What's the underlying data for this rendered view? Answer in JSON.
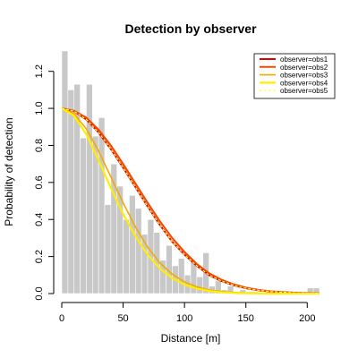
{
  "chart_data": {
    "type": "bar",
    "title": "Detection by observer",
    "xlabel": "Distance [m]",
    "ylabel": "Probability of detection",
    "xlim": [
      0,
      210
    ],
    "ylim": [
      0,
      1.3
    ],
    "xticks": [
      0,
      50,
      100,
      150,
      200
    ],
    "yticks": [
      0.0,
      0.2,
      0.4,
      0.6,
      0.8,
      1.0,
      1.2
    ],
    "ytick_labels": [
      "0.0",
      "0.2",
      "0.4",
      "0.6",
      "0.8",
      "1.0",
      "1.2"
    ],
    "grid": false,
    "legend_position": "top-right",
    "histogram": {
      "color": "#c8c8c8",
      "bin_width": 5,
      "bins": [
        {
          "x0": 0,
          "height": 1.31
        },
        {
          "x0": 5,
          "height": 1.1
        },
        {
          "x0": 10,
          "height": 1.13
        },
        {
          "x0": 15,
          "height": 0.84
        },
        {
          "x0": 20,
          "height": 1.13
        },
        {
          "x0": 25,
          "height": 0.85
        },
        {
          "x0": 30,
          "height": 0.95
        },
        {
          "x0": 35,
          "height": 0.48
        },
        {
          "x0": 40,
          "height": 0.7
        },
        {
          "x0": 45,
          "height": 0.58
        },
        {
          "x0": 50,
          "height": 0.4
        },
        {
          "x0": 55,
          "height": 0.53
        },
        {
          "x0": 60,
          "height": 0.46
        },
        {
          "x0": 65,
          "height": 0.32
        },
        {
          "x0": 70,
          "height": 0.4
        },
        {
          "x0": 75,
          "height": 0.33
        },
        {
          "x0": 80,
          "height": 0.18
        },
        {
          "x0": 85,
          "height": 0.26
        },
        {
          "x0": 90,
          "height": 0.15
        },
        {
          "x0": 95,
          "height": 0.19
        },
        {
          "x0": 100,
          "height": 0.1
        },
        {
          "x0": 105,
          "height": 0.17
        },
        {
          "x0": 110,
          "height": 0.09
        },
        {
          "x0": 115,
          "height": 0.22
        },
        {
          "x0": 120,
          "height": 0.04
        },
        {
          "x0": 125,
          "height": 0.07
        },
        {
          "x0": 130,
          "height": 0.02
        },
        {
          "x0": 135,
          "height": 0.04
        },
        {
          "x0": 140,
          "height": 0.01
        },
        {
          "x0": 145,
          "height": 0.02
        },
        {
          "x0": 150,
          "height": 0.01
        },
        {
          "x0": 155,
          "height": 0.01
        },
        {
          "x0": 200,
          "height": 0.03
        },
        {
          "x0": 205,
          "height": 0.03
        }
      ]
    },
    "series": [
      {
        "name": "observer=obs1",
        "color": "#e00000",
        "width": 2.0,
        "dash": "",
        "x": [
          0,
          10,
          20,
          30,
          40,
          50,
          60,
          70,
          80,
          90,
          100,
          110,
          120,
          130,
          140,
          150,
          160,
          170,
          180,
          190,
          200,
          210
        ],
        "y": [
          1.0,
          0.985,
          0.94,
          0.87,
          0.78,
          0.68,
          0.575,
          0.47,
          0.37,
          0.28,
          0.21,
          0.15,
          0.1,
          0.068,
          0.045,
          0.029,
          0.018,
          0.011,
          0.007,
          0.004,
          0.002,
          0.001
        ]
      },
      {
        "name": "observer=obs2",
        "color": "#f04a00",
        "width": 2.0,
        "dash": "",
        "x": [
          0,
          10,
          20,
          30,
          40,
          50,
          60,
          70,
          80,
          90,
          100,
          110,
          120,
          130,
          140,
          150,
          160,
          170,
          180,
          190,
          200,
          210
        ],
        "y": [
          1.0,
          0.987,
          0.95,
          0.885,
          0.8,
          0.7,
          0.595,
          0.49,
          0.39,
          0.3,
          0.225,
          0.16,
          0.11,
          0.075,
          0.05,
          0.032,
          0.02,
          0.012,
          0.008,
          0.005,
          0.003,
          0.002
        ]
      },
      {
        "name": "observer=obs3",
        "color": "#f2a900",
        "width": 1.6,
        "dash": "",
        "x": [
          0,
          10,
          20,
          30,
          40,
          50,
          60,
          70,
          80,
          90,
          100,
          110,
          120,
          130,
          140,
          150,
          160,
          170,
          180,
          190,
          200,
          210
        ],
        "y": [
          1.0,
          0.97,
          0.89,
          0.77,
          0.63,
          0.49,
          0.36,
          0.25,
          0.165,
          0.105,
          0.063,
          0.036,
          0.02,
          0.011,
          0.006,
          0.003,
          0.001,
          0.001,
          0.0,
          0.0,
          0.0,
          0.0
        ]
      },
      {
        "name": "observer=obs4",
        "color": "#ffee00",
        "width": 2.2,
        "dash": "",
        "x": [
          0,
          10,
          20,
          30,
          40,
          50,
          60,
          70,
          80,
          90,
          100,
          110,
          120,
          130,
          140,
          150,
          160,
          170,
          180,
          190,
          200,
          210
        ],
        "y": [
          1.0,
          0.96,
          0.86,
          0.72,
          0.57,
          0.43,
          0.31,
          0.21,
          0.135,
          0.083,
          0.048,
          0.027,
          0.014,
          0.007,
          0.003,
          0.002,
          0.001,
          0.0,
          0.0,
          0.0,
          0.0,
          0.0
        ]
      },
      {
        "name": "observer=obs5",
        "color": "#ffff40",
        "width": 1.2,
        "dash": "3,2",
        "x": [
          0,
          10,
          20,
          30,
          40,
          50,
          60,
          70,
          80,
          90,
          100,
          110,
          120,
          130,
          140,
          150,
          160,
          170,
          180,
          190,
          200,
          210
        ],
        "y": [
          1.0,
          0.985,
          0.94,
          0.87,
          0.78,
          0.68,
          0.575,
          0.47,
          0.37,
          0.28,
          0.21,
          0.15,
          0.1,
          0.068,
          0.045,
          0.029,
          0.018,
          0.011,
          0.007,
          0.004,
          0.002,
          0.001
        ]
      }
    ]
  }
}
